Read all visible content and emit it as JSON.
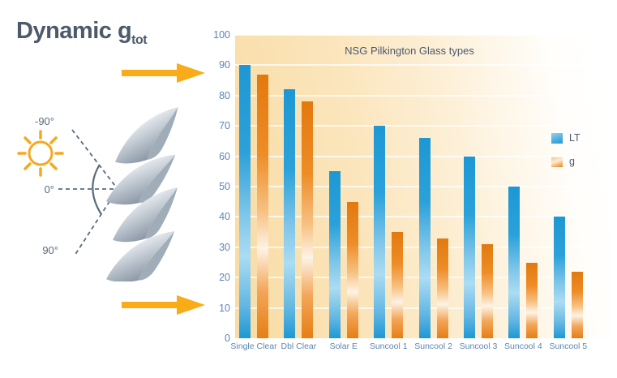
{
  "left_panel": {
    "title_main": "Dynamic g",
    "title_subscript": "tot",
    "angles": {
      "minus90": "-90°",
      "zero": "0°",
      "plus90": "90°"
    },
    "arrow_color": "#F9AB18",
    "sun_color": "#F6A81F",
    "line_color": "#5A6B7E"
  },
  "chart": {
    "title": "NSG Pilkington Glass types",
    "y_axis": {
      "ticks": [
        0,
        10,
        20,
        30,
        40,
        50,
        60,
        70,
        80,
        90,
        100
      ]
    },
    "legend": {
      "items": [
        {
          "label": "LT",
          "color": "#1D98D4"
        },
        {
          "label": "g",
          "color": "#E8821E"
        }
      ]
    }
  },
  "chart_data": {
    "type": "bar",
    "title": "NSG Pilkington Glass types",
    "categories": [
      "Single Clear",
      "Dbl Clear",
      "Solar E",
      "Suncool 1",
      "Suncool 2",
      "Suncool 3",
      "Suncool 4",
      "Suncool 5"
    ],
    "series": [
      {
        "name": "LT",
        "color": "#1D98D4",
        "values": [
          90,
          82,
          55,
          70,
          66,
          60,
          50,
          40
        ]
      },
      {
        "name": "g",
        "color": "#E8821E",
        "values": [
          87,
          78,
          45,
          35,
          33,
          31,
          25,
          22
        ]
      }
    ],
    "ylim": [
      0,
      100
    ],
    "ytick_step": 10,
    "grid": true,
    "legend_position": "right-inside",
    "xlabel": "",
    "ylabel": ""
  }
}
